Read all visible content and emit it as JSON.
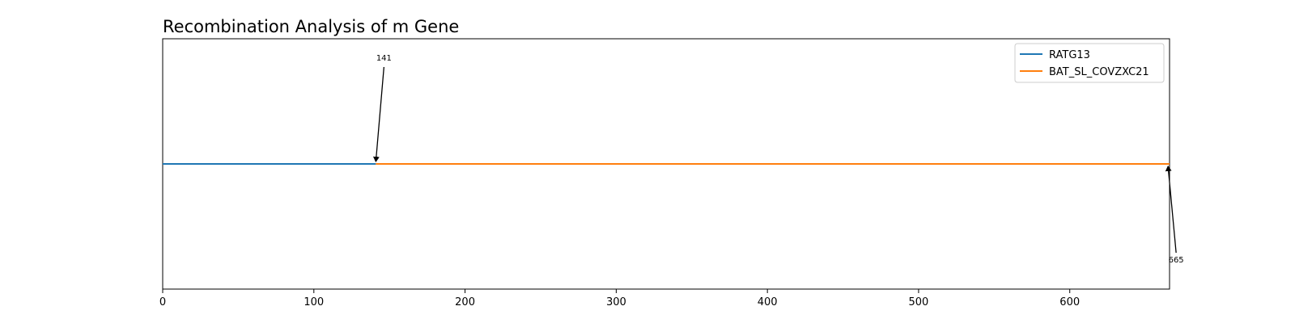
{
  "chart_data": {
    "type": "line",
    "title": "Recombination Analysis of m Gene",
    "xlabel": "",
    "ylabel": "",
    "xlim": [
      0,
      666
    ],
    "ylim": [
      -1,
      1
    ],
    "grid": false,
    "legend_position": "top-right",
    "x_ticks": [
      0,
      100,
      200,
      300,
      400,
      500,
      600
    ],
    "series": [
      {
        "name": "RATG13",
        "color": "#1f77b4",
        "x": [
          0,
          141
        ],
        "y": [
          0,
          0
        ]
      },
      {
        "name": "BAT_SL_COVZXC21",
        "color": "#ff7f0e",
        "x": [
          141,
          666
        ],
        "y": [
          0,
          0
        ]
      }
    ],
    "annotations": [
      {
        "text": "141",
        "x": 141,
        "y": 0,
        "side": "above"
      },
      {
        "text": "665",
        "x": 665,
        "y": 0,
        "side": "below"
      }
    ]
  }
}
